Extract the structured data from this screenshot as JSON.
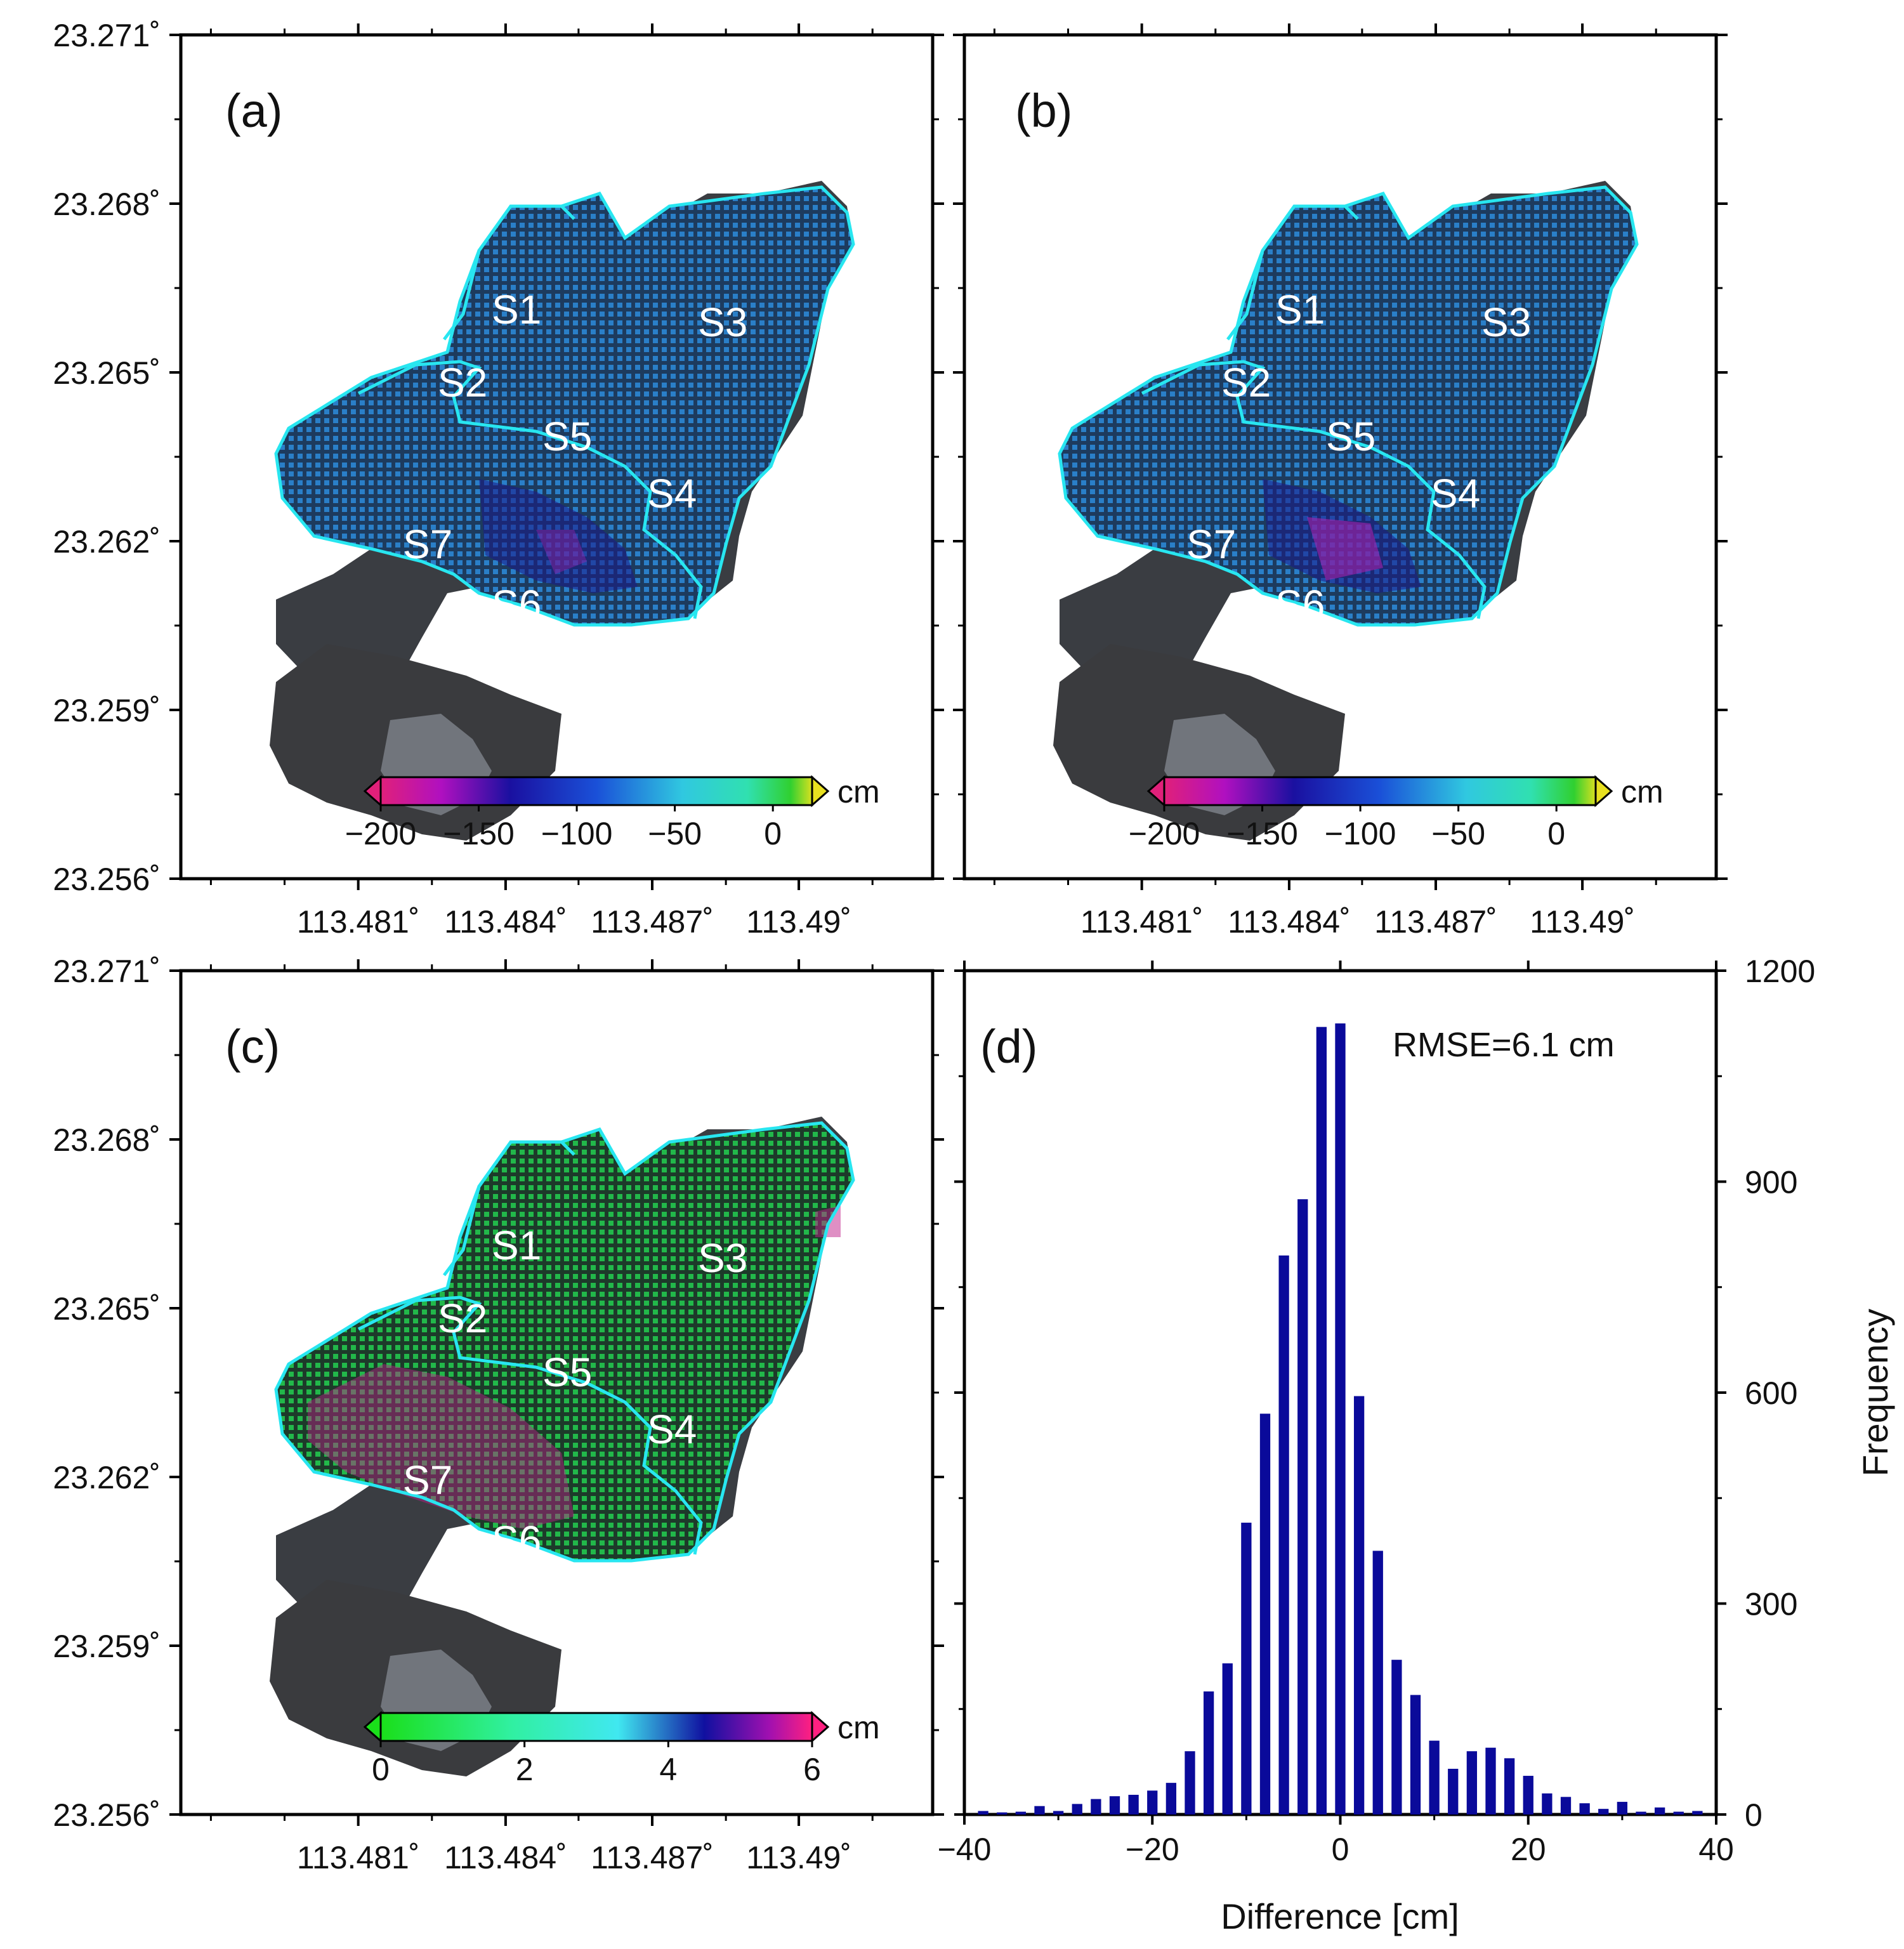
{
  "figure": {
    "lat_labels": [
      "23.271˚",
      "23.268˚",
      "23.265˚",
      "23.262˚",
      "23.259˚",
      "23.256˚"
    ],
    "lon_labels": [
      "113.481˚",
      "113.484˚",
      "113.487˚",
      "113.49˚"
    ],
    "zones": [
      "S1",
      "S2",
      "S3",
      "S4",
      "S5",
      "S6",
      "S7"
    ],
    "outline_color": "#28e6f0",
    "point_density": "dense"
  },
  "panels": {
    "a": {
      "label": "(a)",
      "colorbar": {
        "ticks": [
          "−200",
          "−150",
          "−100",
          "−50",
          "0"
        ],
        "unit": "cm",
        "min": -200,
        "max": 20,
        "tick_values": [
          -200,
          -150,
          -100,
          -50,
          0
        ]
      }
    },
    "b": {
      "label": "(b)",
      "colorbar": {
        "ticks": [
          "−200",
          "−150",
          "−100",
          "−50",
          "0"
        ],
        "unit": "cm",
        "min": -200,
        "max": 20,
        "tick_values": [
          -200,
          -150,
          -100,
          -50,
          0
        ]
      }
    },
    "c": {
      "label": "(c)",
      "colorbar": {
        "ticks": [
          "0",
          "2",
          "4",
          "6"
        ],
        "unit": "cm",
        "min": 0,
        "max": 6,
        "tick_values": [
          0,
          2,
          4,
          6
        ]
      }
    },
    "d": {
      "label": "(d)",
      "rmse": "RMSE=6.1 cm"
    }
  },
  "chart_data": {
    "type": "bar",
    "title": "(d)",
    "annotation": "RMSE=6.1 cm",
    "xlabel": "Difference [cm]",
    "ylabel": "Frequency",
    "xlim": [
      -40,
      40
    ],
    "ylim": [
      0,
      1200
    ],
    "x_ticks": [
      "−40",
      "−20",
      "0",
      "20",
      "40"
    ],
    "x_tick_values": [
      -40,
      -20,
      0,
      20,
      40
    ],
    "y_ticks": [
      "0",
      "300",
      "600",
      "900",
      "1200"
    ],
    "y_tick_values": [
      0,
      300,
      600,
      900,
      1200
    ],
    "bar_color": "#0a0a9a",
    "x": [
      -38,
      -36,
      -34,
      -32,
      -30,
      -28,
      -26,
      -24,
      -22,
      -20,
      -18,
      -16,
      -14,
      -12,
      -10,
      -8,
      -6,
      -4,
      -2,
      0,
      2,
      4,
      6,
      8,
      10,
      12,
      14,
      16,
      18,
      20,
      22,
      24,
      26,
      28,
      30,
      32,
      34,
      36,
      38
    ],
    "values": [
      5,
      3,
      4,
      12,
      5,
      15,
      22,
      26,
      28,
      34,
      45,
      90,
      175,
      215,
      415,
      570,
      795,
      875,
      1120,
      1125,
      595,
      375,
      220,
      170,
      105,
      65,
      90,
      95,
      80,
      55,
      30,
      25,
      16,
      8,
      18,
      4,
      10,
      4,
      5
    ]
  }
}
